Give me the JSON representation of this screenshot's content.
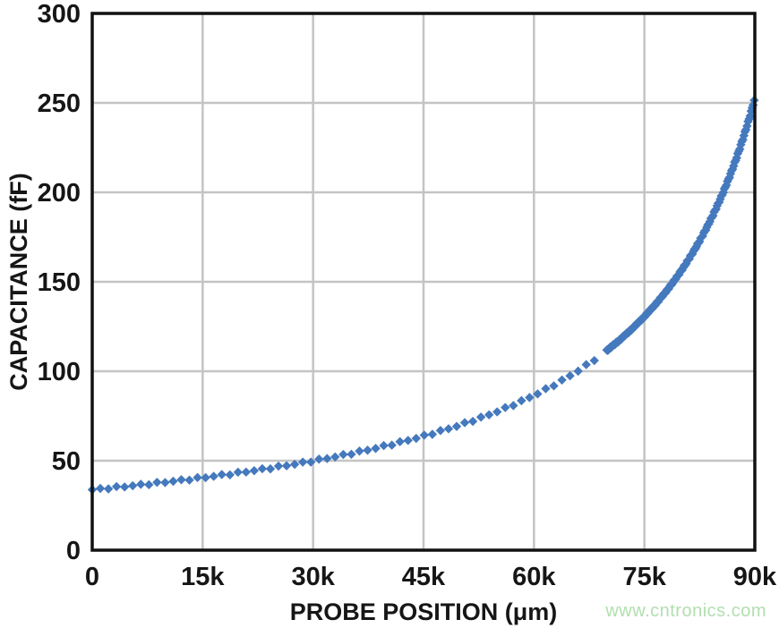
{
  "watermark": {
    "text": "www.cntronics.com",
    "color": "#b1dfae"
  },
  "chart_data": {
    "type": "scatter",
    "title": "",
    "xlabel": "PROBE POSITION (μm)",
    "ylabel": "CAPACITANCE (fF)",
    "xlim": [
      0,
      90000
    ],
    "ylim": [
      0,
      300
    ],
    "x_ticks": [
      0,
      15000,
      30000,
      45000,
      60000,
      75000,
      90000
    ],
    "x_tick_labels": [
      "0",
      "15k",
      "30k",
      "45k",
      "60k",
      "75k",
      "90k"
    ],
    "y_ticks": [
      0,
      50,
      100,
      150,
      200,
      250,
      300
    ],
    "y_tick_labels": [
      "0",
      "50",
      "100",
      "150",
      "200",
      "250",
      "300"
    ],
    "grid": true,
    "legend": "none",
    "marker": "diamond",
    "marker_half_size_px": 5.2,
    "y_jitter_fF": 0.45,
    "colors": {
      "marker": "#4579bd",
      "gridline": "#c4c4c4",
      "frame": "#111111",
      "text": "#161616"
    },
    "series": [
      {
        "name": "capacitance-vs-probe-position",
        "model": {
          "formula": "C_fF = k / (d - x_um) + c0",
          "k": 4420000,
          "d": 107000,
          "c0": -7.5
        },
        "segments": [
          {
            "x_start": 0,
            "x_end": 68200,
            "x_step": 1100,
            "note": "coarse sweep, distinct diamond markers"
          },
          {
            "x_start": 69900,
            "x_end": 90000,
            "x_step": 140,
            "note": "fine sweep, markers merge into solid band"
          }
        ],
        "sampled_points": {
          "x": [
            0,
            5000,
            10000,
            15000,
            20000,
            25000,
            30000,
            35000,
            40000,
            45000,
            50000,
            55000,
            60000,
            65000,
            70000,
            75000,
            80000,
            85000,
            90000
          ],
          "y": [
            33.8,
            35.8,
            38.1,
            40.5,
            43.3,
            46.4,
            49.9,
            53.9,
            58.5,
            63.8,
            70.0,
            77.5,
            86.5,
            97.7,
            112.0,
            130.6,
            156.2,
            193.4,
            252.5
          ]
        }
      }
    ]
  }
}
